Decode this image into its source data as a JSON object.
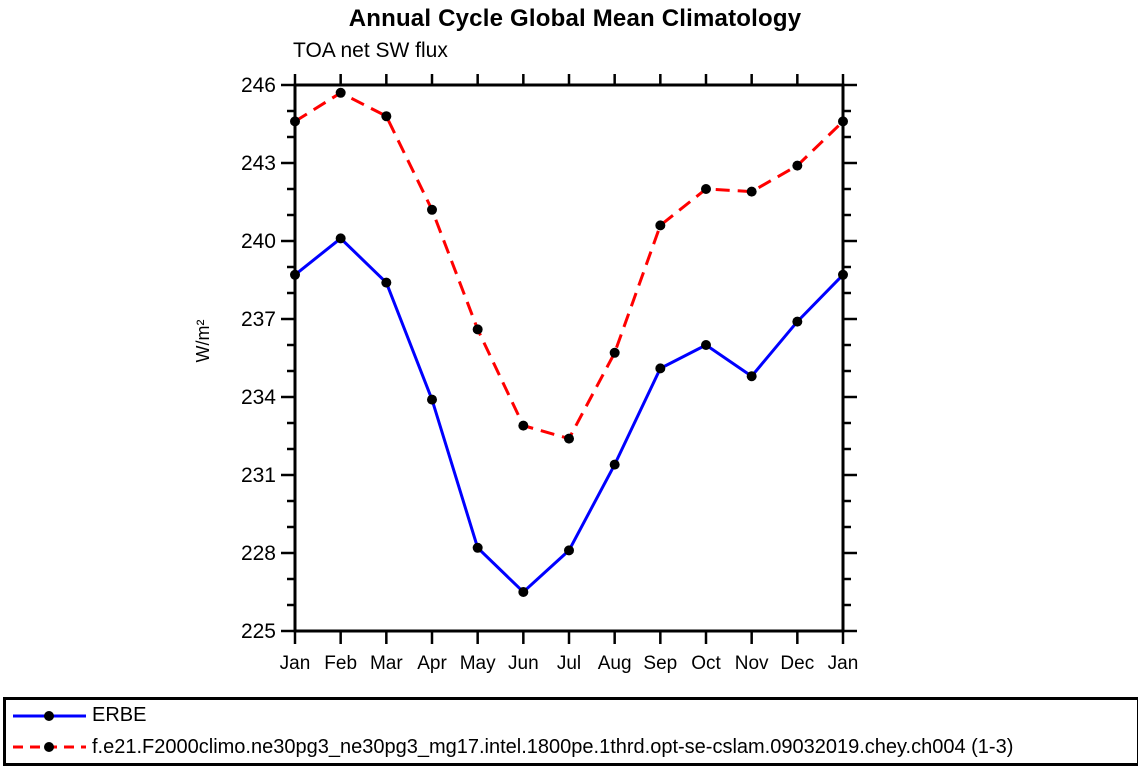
{
  "chart_data": {
    "type": "line",
    "title": "Annual Cycle Global Mean Climatology",
    "subtitle": "TOA net SW flux",
    "ylabel": "W/m²",
    "xlabel": "",
    "categories": [
      "Jan",
      "Feb",
      "Mar",
      "Apr",
      "May",
      "Jun",
      "Jul",
      "Aug",
      "Sep",
      "Oct",
      "Nov",
      "Dec",
      "Jan"
    ],
    "ylim": [
      225,
      246
    ],
    "yticks": [
      225,
      228,
      231,
      234,
      237,
      240,
      243,
      246
    ],
    "yminor_step": 1,
    "grid": false,
    "legend_position": "bottom-box-full-width",
    "series": [
      {
        "name": "ERBE",
        "color": "#0000ff",
        "line_style": "solid",
        "marker": "filled-circle",
        "marker_color": "#000000",
        "values": [
          238.7,
          240.1,
          238.4,
          233.9,
          228.2,
          226.5,
          228.1,
          231.4,
          235.1,
          236.0,
          234.8,
          236.9,
          238.7
        ]
      },
      {
        "name": "f.e21.F2000climo.ne30pg3_ne30pg3_mg17.intel.1800pe.1thrd.opt-se-cslam.09032019.chey.ch004 (1-3)",
        "color": "#ff0000",
        "line_style": "dashed",
        "marker": "filled-circle",
        "marker_color": "#000000",
        "values": [
          244.6,
          245.7,
          244.8,
          241.2,
          236.6,
          232.9,
          232.4,
          235.7,
          240.6,
          242.0,
          241.9,
          242.9,
          244.6
        ]
      }
    ]
  }
}
